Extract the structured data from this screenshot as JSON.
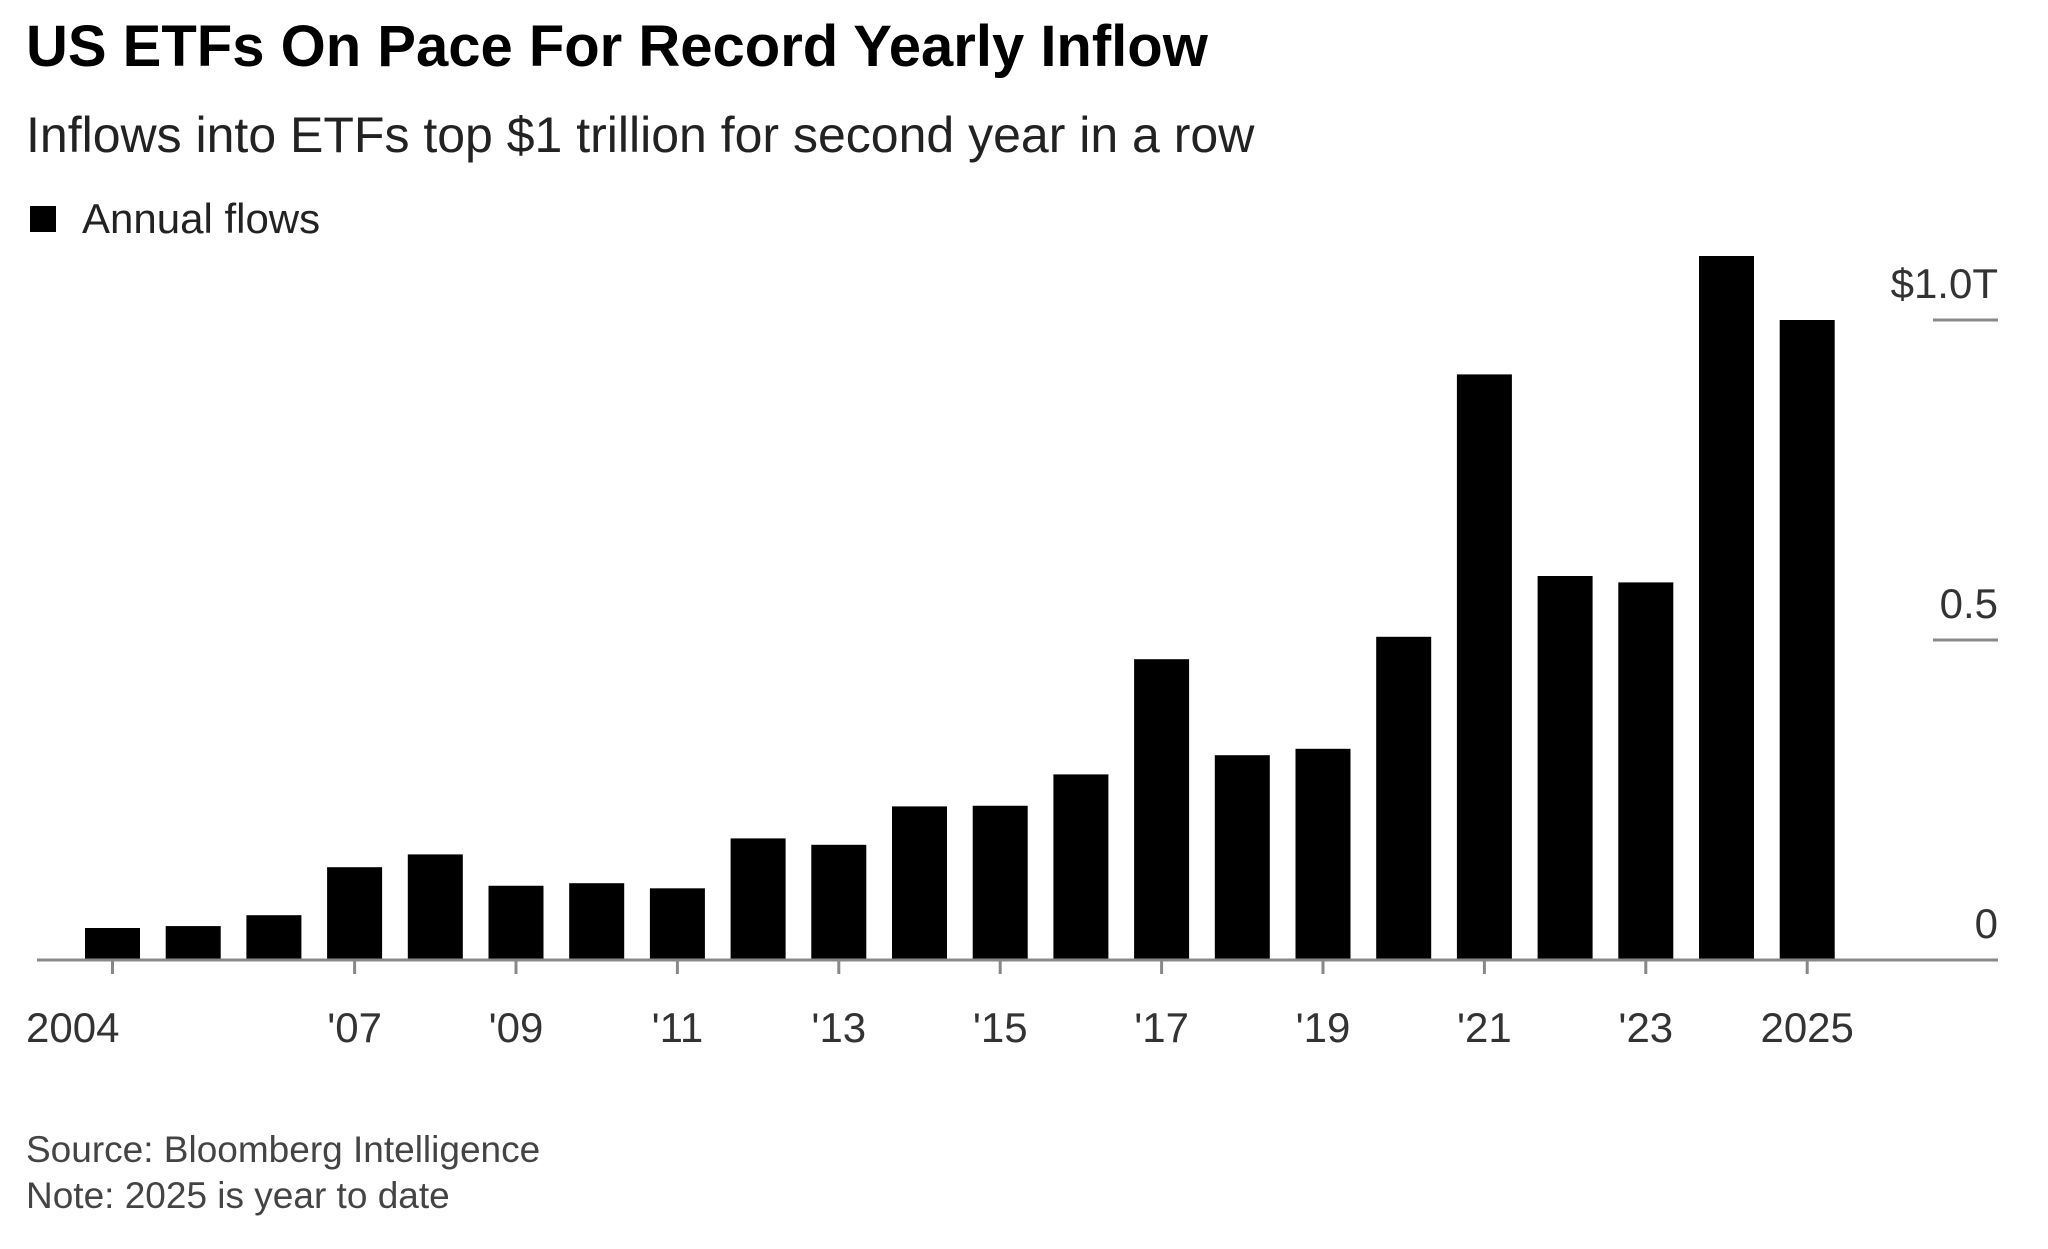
{
  "chart_data": {
    "type": "bar",
    "title": "US ETFs On Pace For Record Yearly Inflow",
    "subtitle": "Inflows into ETFs top $1 trillion for second year in a row",
    "legend": [
      {
        "name": "Annual flows",
        "color": "#000000"
      }
    ],
    "legend_placement": "top-left",
    "categories": [
      "2004",
      "2005",
      "2006",
      "2007",
      "2008",
      "2009",
      "2010",
      "2011",
      "2012",
      "2013",
      "2014",
      "2015",
      "2016",
      "2017",
      "2018",
      "2019",
      "2020",
      "2021",
      "2022",
      "2023",
      "2024",
      "2025"
    ],
    "series": [
      {
        "name": "Annual flows",
        "unit": "$T",
        "values": [
          0.05,
          0.053,
          0.07,
          0.145,
          0.165,
          0.116,
          0.12,
          0.112,
          0.19,
          0.18,
          0.24,
          0.241,
          0.29,
          0.47,
          0.32,
          0.33,
          0.505,
          0.915,
          0.6,
          0.59,
          1.1,
          1.0
        ]
      }
    ],
    "x_tick_labels": [
      {
        "category": "2004",
        "label": "2004"
      },
      {
        "category": "2007",
        "label": "'07"
      },
      {
        "category": "2009",
        "label": "'09"
      },
      {
        "category": "2011",
        "label": "'11"
      },
      {
        "category": "2013",
        "label": "'13"
      },
      {
        "category": "2015",
        "label": "'15"
      },
      {
        "category": "2017",
        "label": "'17"
      },
      {
        "category": "2019",
        "label": "'19"
      },
      {
        "category": "2021",
        "label": "'21"
      },
      {
        "category": "2023",
        "label": "'23"
      },
      {
        "category": "2025",
        "label": "2025"
      }
    ],
    "y_ticks": [
      {
        "value": 0,
        "label": "0"
      },
      {
        "value": 0.5,
        "label": "0.5"
      },
      {
        "value": 1.0,
        "label": "$1.0T"
      }
    ],
    "ylim": [
      0,
      1.12
    ],
    "y_axis_side": "right",
    "grid": true,
    "bar_color": "#000000",
    "xlabel": "",
    "ylabel": ""
  },
  "footer": {
    "source": "Source: Bloomberg Intelligence",
    "note": "Note: 2025 is year to date"
  }
}
